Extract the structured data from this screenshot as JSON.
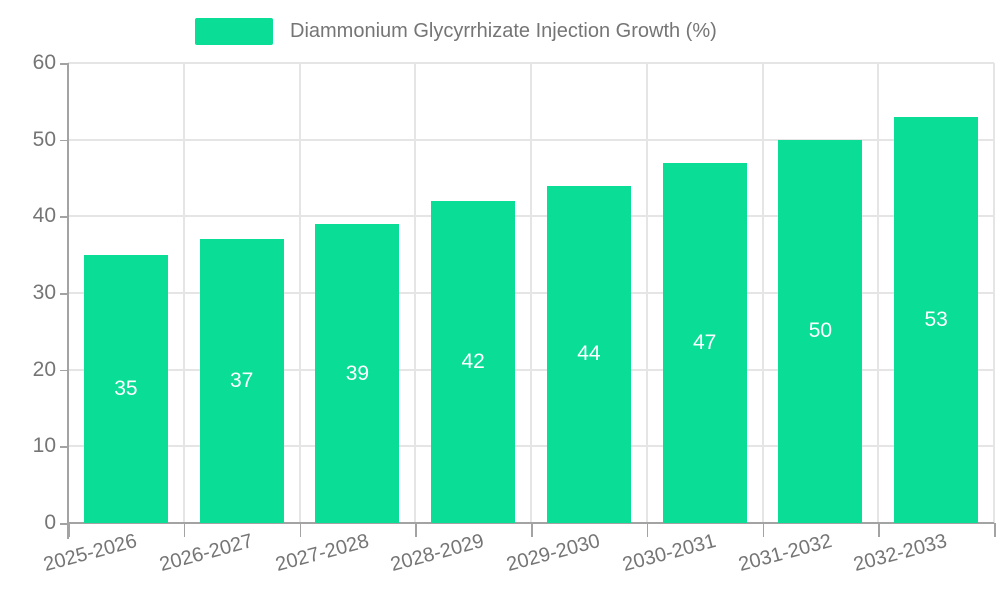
{
  "chart_data": {
    "type": "bar",
    "title": "",
    "legend": "Diammonium Glycyrrhizate Injection Growth (%)",
    "categories": [
      "2025-2026",
      "2026-2027",
      "2027-2028",
      "2028-2029",
      "2029-2030",
      "2030-2031",
      "2031-2032",
      "2032-2033"
    ],
    "values": [
      35,
      37,
      39,
      42,
      44,
      47,
      50,
      53
    ],
    "value_labels": [
      "35",
      "37",
      "39",
      "42",
      "44",
      "47",
      "50",
      "53"
    ],
    "xlabel": "",
    "ylabel": "",
    "ylim": [
      0,
      60
    ],
    "yticks": [
      0,
      10,
      20,
      30,
      40,
      50,
      60
    ],
    "grid": true,
    "legend_position": "top-center",
    "colors": {
      "bar": "#0ade96",
      "bar_value_text": "#ffffff",
      "axis_text": "#757575",
      "grid_line": "#e5e5e5",
      "axis_line": "#a3a3a3",
      "background": "#ffffff"
    }
  }
}
